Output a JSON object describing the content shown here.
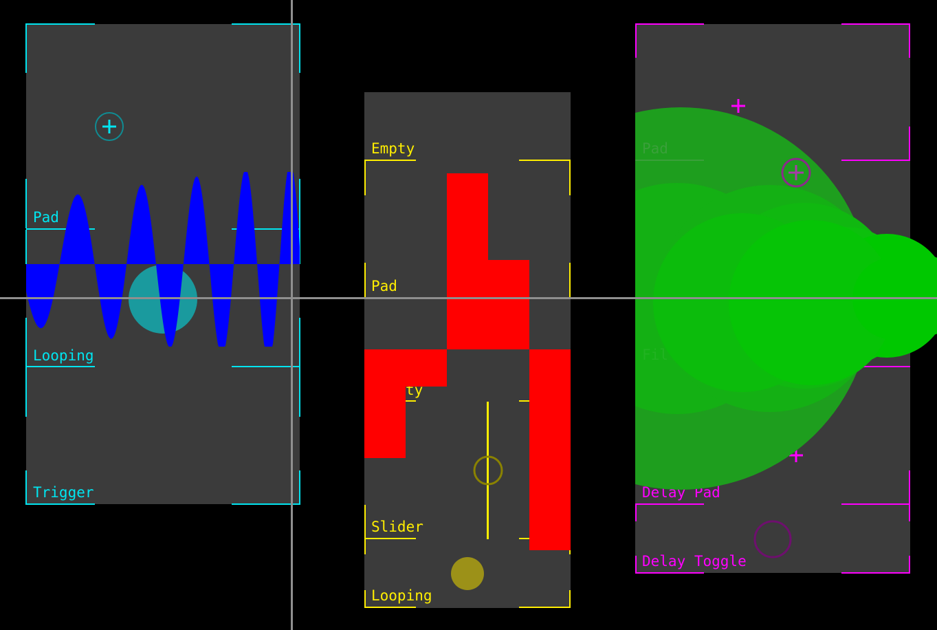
{
  "colors": {
    "background": "#000000",
    "panel": "#3b3b3b",
    "cyan": "#00e5f0",
    "yellow": "#ffee00",
    "magenta": "#ff00ff",
    "wave": "#0000ff",
    "red": "#ff0000",
    "green": "#00c000",
    "crosshair": "#8f8f8f"
  },
  "panels": {
    "left": {
      "labels": {
        "pad": "Pad",
        "looping": "Looping",
        "trigger": "Trigger"
      }
    },
    "middle": {
      "labels": {
        "empty_top": "Empty",
        "pad": "Pad",
        "empty_obscured": "ty",
        "slider": "Slider",
        "looping": "Looping"
      }
    },
    "right": {
      "labels": {
        "pad": "Pad",
        "delay_pad": "Delay Pad",
        "delay_toggle": "Delay Toggle",
        "obscured": "Fil"
      }
    }
  },
  "icons": {
    "add_cyan": "plus-circle-icon",
    "plus_magenta": "plus-icon"
  }
}
